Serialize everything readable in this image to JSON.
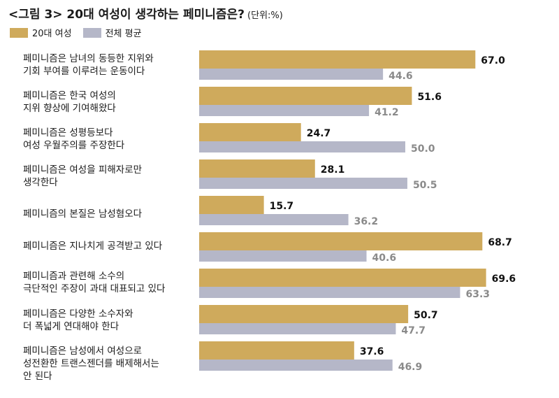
{
  "title": "<그림 3> 20대 여성이 생각하는 페미니즘은?",
  "unit": "(단위:%)",
  "legend": [
    {
      "label": "20대 여성",
      "color": "#cfaa5c"
    },
    {
      "label": "전체 평균",
      "color": "#b5b7c8"
    }
  ],
  "chart_data": {
    "type": "bar",
    "orientation": "horizontal",
    "categories": [
      "페미니즘은 남녀의 동등한 지위와\n기회 부여를 이루려는 운동이다",
      "페미니즘은 한국 여성의\n지위 향상에 기여해왔다",
      "페미니즘은 성평등보다\n여성 우월주의를 주장한다",
      "페미니즘은 여성을 피해자로만\n생각한다",
      "페미니즘의 본질은 남성혐오다",
      "페미니즘은 지나치게 공격받고 있다",
      "페미니즘과 관련해 소수의\n극단적인 주장이 과대 대표되고 있다",
      "페미니즘은 다양한 소수자와\n더 폭넓게 연대해야 한다",
      "페미니즘은 남성에서 여성으로\n성전환한 트랜스젠더를 배제해서는\n안 된다"
    ],
    "series": [
      {
        "name": "20대 여성",
        "color": "#cfaa5c",
        "label_color": "#111111",
        "values": [
          67.0,
          51.6,
          24.7,
          28.1,
          15.7,
          68.7,
          69.6,
          50.7,
          37.6
        ]
      },
      {
        "name": "전체 평균",
        "color": "#b5b7c8",
        "label_color": "#8a8a8a",
        "values": [
          44.6,
          41.2,
          50.0,
          50.5,
          36.2,
          40.6,
          63.3,
          47.7,
          46.9
        ]
      }
    ]
  }
}
